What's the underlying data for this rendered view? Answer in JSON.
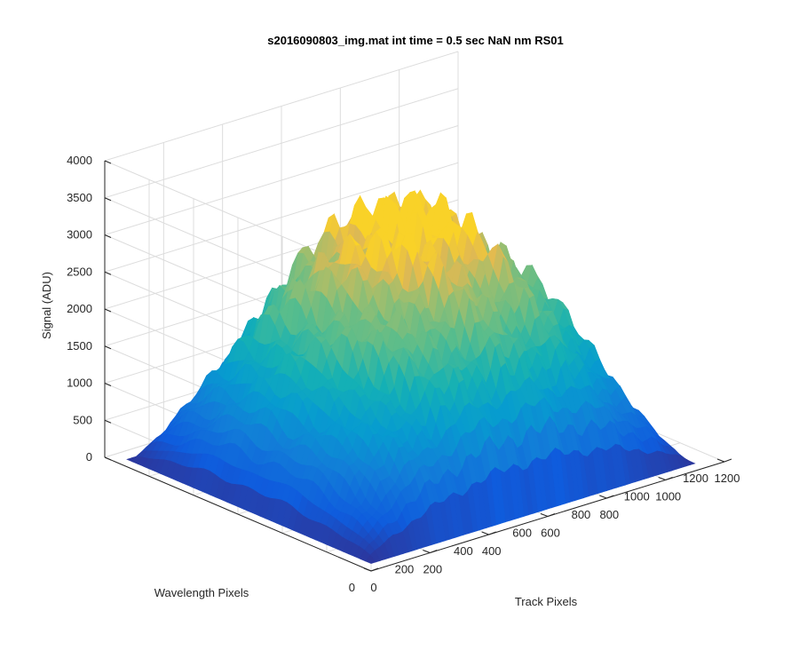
{
  "colors": {
    "background": "#ffffff",
    "grid": "#dcdcdc",
    "axis": "#262626",
    "colormap": "parula"
  },
  "chart_data": {
    "type": "surface",
    "title": "s2016090803_img.mat int time = 0.5 sec  NaN nm RS01",
    "xlabel": "Track Pixels",
    "ylabel": "Wavelength Pixels",
    "zlabel": "Signal (ADU)",
    "xlim": [
      0,
      1200
    ],
    "ylim": [
      0,
      1200
    ],
    "zlim": [
      0,
      4000
    ],
    "xticks": [
      "0",
      "200",
      "400",
      "600",
      "800",
      "1000",
      "1200"
    ],
    "yticks": [
      "0",
      "200",
      "400",
      "600",
      "800",
      "1000",
      "1200"
    ],
    "zticks": [
      "0",
      "500",
      "1000",
      "1500",
      "2000",
      "2500",
      "3000",
      "3500",
      "4000"
    ],
    "grid": true,
    "surface_extent": {
      "track_pixels": [
        0,
        1100
      ],
      "wavelength_pixels": [
        0,
        1100
      ]
    },
    "peak_signal_approx": 3300,
    "edge_signal_approx": 100
  }
}
